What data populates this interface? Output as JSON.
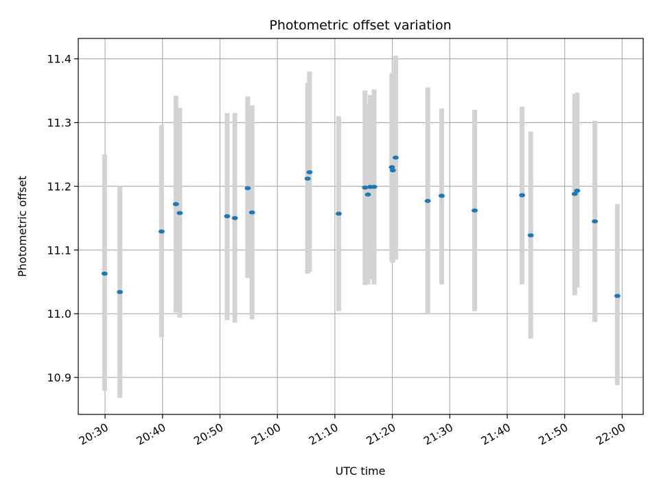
{
  "chart_data": {
    "type": "scatter",
    "title": "Photometric offset variation",
    "xlabel": "UTC time",
    "ylabel": "Photometric offset",
    "grid": true,
    "x_unit": "minutes after 20:00 UTC",
    "xlim": [
      "20:25:20",
      "22:03:40"
    ],
    "ylim": [
      10.842,
      11.432
    ],
    "x_ticks": [
      "20:30",
      "20:40",
      "20:50",
      "21:00",
      "21:10",
      "21:20",
      "21:30",
      "21:40",
      "21:50",
      "22:00"
    ],
    "y_ticks": [
      10.9,
      11.0,
      11.1,
      11.2,
      11.3,
      11.4
    ],
    "y_tick_labels": [
      "10.9",
      "11.0",
      "11.1",
      "11.2",
      "11.3",
      "11.4"
    ],
    "colors": {
      "point": "#1f77b4",
      "errorbar": "#d3d3d3",
      "grid": "#b0b0b0"
    },
    "series": [
      {
        "points": [
          {
            "x": "20:29:55",
            "y": 11.063,
            "ylow": 10.879,
            "yhigh": 11.25
          },
          {
            "x": "20:32:35",
            "y": 11.034,
            "ylow": 10.868,
            "yhigh": 11.2
          },
          {
            "x": "20:39:50",
            "y": 11.129,
            "ylow": 10.963,
            "yhigh": 11.296
          },
          {
            "x": "20:42:20",
            "y": 11.172,
            "ylow": 11.002,
            "yhigh": 11.342
          },
          {
            "x": "20:43:00",
            "y": 11.158,
            "ylow": 10.994,
            "yhigh": 11.323
          },
          {
            "x": "20:51:15",
            "y": 11.153,
            "ylow": 10.99,
            "yhigh": 11.315
          },
          {
            "x": "20:52:35",
            "y": 11.15,
            "ylow": 10.986,
            "yhigh": 11.315
          },
          {
            "x": "20:54:50",
            "y": 11.197,
            "ylow": 11.056,
            "yhigh": 11.341
          },
          {
            "x": "20:55:35",
            "y": 11.159,
            "ylow": 10.991,
            "yhigh": 11.327
          },
          {
            "x": "21:05:15",
            "y": 11.212,
            "ylow": 11.063,
            "yhigh": 11.362
          },
          {
            "x": "21:05:35",
            "y": 11.222,
            "ylow": 11.066,
            "yhigh": 11.38
          },
          {
            "x": "21:10:40",
            "y": 11.157,
            "ylow": 11.004,
            "yhigh": 11.31
          },
          {
            "x": "21:15:15",
            "y": 11.198,
            "ylow": 11.045,
            "yhigh": 11.35
          },
          {
            "x": "21:15:45",
            "y": 11.187,
            "ylow": 11.046,
            "yhigh": 11.328
          },
          {
            "x": "21:16:10",
            "y": 11.199,
            "ylow": 11.054,
            "yhigh": 11.343
          },
          {
            "x": "21:16:50",
            "y": 11.199,
            "ylow": 11.046,
            "yhigh": 11.352
          },
          {
            "x": "21:19:55",
            "y": 11.23,
            "ylow": 11.082,
            "yhigh": 11.377
          },
          {
            "x": "21:20:05",
            "y": 11.225,
            "ylow": 11.08,
            "yhigh": 11.378
          },
          {
            "x": "21:20:35",
            "y": 11.245,
            "ylow": 11.085,
            "yhigh": 11.405
          },
          {
            "x": "21:26:10",
            "y": 11.177,
            "ylow": 11.0,
            "yhigh": 11.355
          },
          {
            "x": "21:28:35",
            "y": 11.185,
            "ylow": 11.046,
            "yhigh": 11.322
          },
          {
            "x": "21:34:20",
            "y": 11.162,
            "ylow": 11.004,
            "yhigh": 11.32
          },
          {
            "x": "21:42:35",
            "y": 11.186,
            "ylow": 11.046,
            "yhigh": 11.325
          },
          {
            "x": "21:44:05",
            "y": 11.123,
            "ylow": 10.961,
            "yhigh": 11.286
          },
          {
            "x": "21:51:45",
            "y": 11.188,
            "ylow": 11.029,
            "yhigh": 11.345
          },
          {
            "x": "21:52:10",
            "y": 11.193,
            "ylow": 11.041,
            "yhigh": 11.347
          },
          {
            "x": "21:55:15",
            "y": 11.145,
            "ylow": 10.987,
            "yhigh": 11.303
          },
          {
            "x": "21:59:10",
            "y": 11.028,
            "ylow": 10.888,
            "yhigh": 11.172
          }
        ]
      }
    ]
  }
}
